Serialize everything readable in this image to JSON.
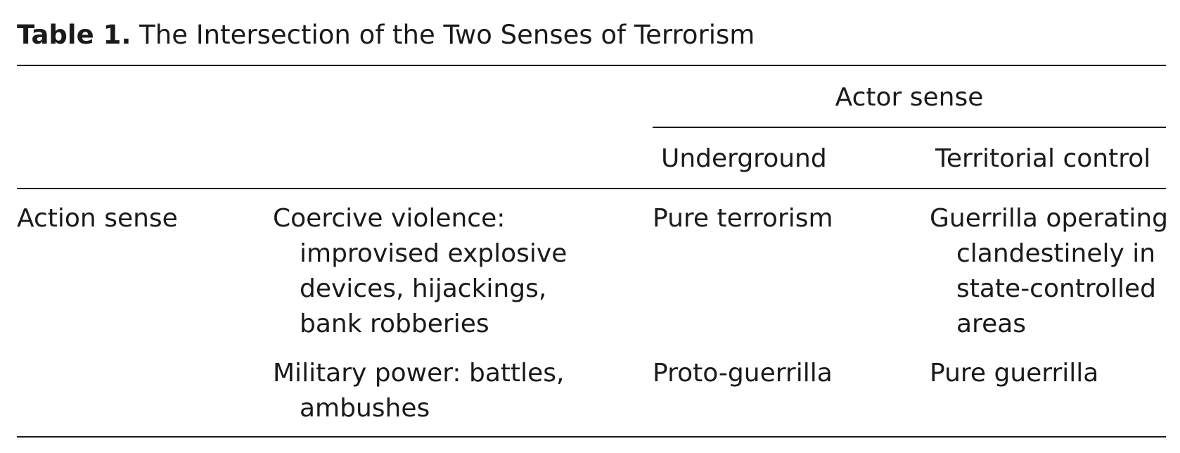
{
  "table": {
    "caption_label": "Table 1.",
    "caption_title": "The Intersection of the Two Senses of Terrorism",
    "group_header": "Actor sense",
    "columns": [
      "Underground",
      "Territorial control"
    ],
    "row_header": "Action sense",
    "rows": [
      {
        "category": "Coercive violence: improvised explosive devices, hijackings, bank robberies",
        "underground": "Pure terrorism",
        "territorial": "Guerrilla operating clandestinely in state-controlled areas"
      },
      {
        "category": "Military power: battles, ambushes",
        "underground": "Proto-guerrilla",
        "territorial": "Pure guerrilla"
      }
    ]
  }
}
